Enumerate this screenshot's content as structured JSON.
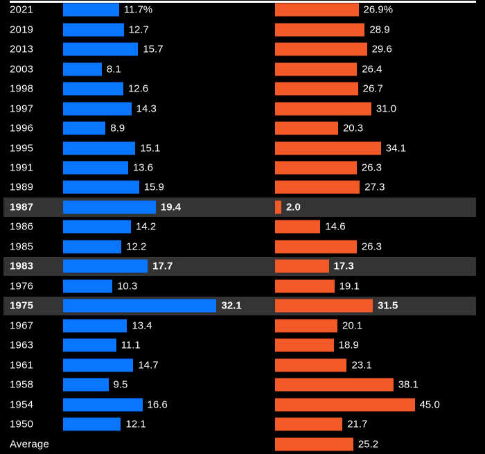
{
  "style": {
    "background": "#000000",
    "top_rule_color": "#ffffff",
    "highlight_row_color": "#343434",
    "text_color": "#ffffff"
  },
  "chart_data": {
    "type": "bar",
    "orientation": "horizontal",
    "grid": false,
    "legend": null,
    "categories": [
      "2021",
      "2019",
      "2013",
      "2003",
      "1998",
      "1997",
      "1996",
      "1995",
      "1991",
      "1989",
      "1987",
      "1986",
      "1985",
      "1983",
      "1976",
      "1975",
      "1967",
      "1963",
      "1961",
      "1958",
      "1954",
      "1950",
      "Average"
    ],
    "series": [
      {
        "name": "left-series",
        "color": "#0a76ff",
        "values": [
          11.7,
          12.7,
          15.7,
          8.1,
          12.6,
          14.3,
          8.9,
          15.1,
          13.6,
          15.9,
          19.4,
          14.2,
          12.2,
          17.7,
          10.3,
          32.1,
          13.4,
          11.1,
          14.7,
          9.5,
          16.6,
          12.1,
          null
        ],
        "labels": [
          "11.7%",
          "12.7",
          "15.7",
          "8.1",
          "12.6",
          "14.3",
          "8.9",
          "15.1",
          "13.6",
          "15.9",
          "19.4",
          "14.2",
          "12.2",
          "17.7",
          "10.3",
          "32.1",
          "13.4",
          "11.1",
          "14.7",
          "9.5",
          "16.6",
          "12.1",
          ""
        ],
        "max_value": 32.1
      },
      {
        "name": "right-series",
        "color": "#f45a28",
        "values": [
          26.9,
          28.9,
          29.6,
          26.4,
          26.7,
          31.0,
          20.3,
          34.1,
          26.3,
          27.3,
          2.0,
          14.6,
          26.3,
          17.3,
          19.1,
          31.5,
          20.1,
          18.9,
          23.1,
          38.1,
          45.0,
          21.7,
          25.2
        ],
        "labels": [
          "26.9%",
          "28.9",
          "29.6",
          "26.4",
          "26.7",
          "31.0",
          "20.3",
          "34.1",
          "26.3",
          "27.3",
          "2.0",
          "14.6",
          "26.3",
          "17.3",
          "19.1",
          "31.5",
          "20.1",
          "18.9",
          "23.1",
          "38.1",
          "45.0",
          "21.7",
          "25.2"
        ],
        "max_value": 45.0
      }
    ],
    "highlighted_categories": [
      "1987",
      "1983",
      "1975"
    ],
    "value_suffix_first_row": "%"
  }
}
